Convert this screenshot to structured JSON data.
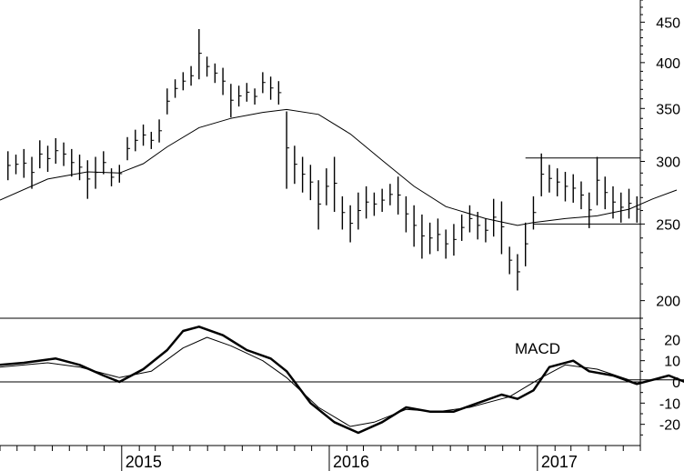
{
  "chart_data": [
    {
      "panel": "price",
      "type": "ohlc",
      "scale": "log",
      "ylim": [
        190,
        480
      ],
      "y_ticks": [
        200,
        250,
        300,
        350,
        400,
        450
      ],
      "x_ticks": [
        "2015",
        "2016",
        "2017"
      ],
      "xlim": [
        "2014-06-01",
        "2017-07-01"
      ],
      "grid": false,
      "bar_color": "#000000",
      "line_color": "#000000",
      "bars": [
        {
          "x": "2014-06-15",
          "h": 309,
          "l": 284
        },
        {
          "x": "2014-06-29",
          "h": 306,
          "l": 289
        },
        {
          "x": "2014-07-13",
          "h": 311,
          "l": 286
        },
        {
          "x": "2014-07-27",
          "h": 304,
          "l": 277
        },
        {
          "x": "2014-08-10",
          "h": 319,
          "l": 294
        },
        {
          "x": "2014-08-24",
          "h": 314,
          "l": 291
        },
        {
          "x": "2014-09-07",
          "h": 321,
          "l": 298
        },
        {
          "x": "2014-09-21",
          "h": 317,
          "l": 296
        },
        {
          "x": "2014-10-05",
          "h": 311,
          "l": 287
        },
        {
          "x": "2014-10-19",
          "h": 306,
          "l": 284
        },
        {
          "x": "2014-11-02",
          "h": 301,
          "l": 269
        },
        {
          "x": "2014-11-16",
          "h": 304,
          "l": 277
        },
        {
          "x": "2014-11-30",
          "h": 309,
          "l": 289
        },
        {
          "x": "2014-12-14",
          "h": 294,
          "l": 279
        },
        {
          "x": "2014-12-28",
          "h": 297,
          "l": 282
        },
        {
          "x": "2015-01-11",
          "h": 322,
          "l": 301
        },
        {
          "x": "2015-01-25",
          "h": 329,
          "l": 309
        },
        {
          "x": "2015-02-08",
          "h": 334,
          "l": 314
        },
        {
          "x": "2015-02-22",
          "h": 327,
          "l": 311
        },
        {
          "x": "2015-03-08",
          "h": 339,
          "l": 317
        },
        {
          "x": "2015-03-22",
          "h": 371,
          "l": 344
        },
        {
          "x": "2015-04-05",
          "h": 381,
          "l": 361
        },
        {
          "x": "2015-04-19",
          "h": 389,
          "l": 369
        },
        {
          "x": "2015-05-03",
          "h": 396,
          "l": 374
        },
        {
          "x": "2015-05-17",
          "h": 441,
          "l": 381
        },
        {
          "x": "2015-05-31",
          "h": 407,
          "l": 384
        },
        {
          "x": "2015-06-14",
          "h": 399,
          "l": 377
        },
        {
          "x": "2015-06-28",
          "h": 394,
          "l": 364
        },
        {
          "x": "2015-07-12",
          "h": 376,
          "l": 341
        },
        {
          "x": "2015-07-26",
          "h": 374,
          "l": 352
        },
        {
          "x": "2015-08-09",
          "h": 377,
          "l": 357
        },
        {
          "x": "2015-08-23",
          "h": 371,
          "l": 354
        },
        {
          "x": "2015-09-06",
          "h": 389,
          "l": 366
        },
        {
          "x": "2015-09-20",
          "h": 384,
          "l": 359
        },
        {
          "x": "2015-10-04",
          "h": 379,
          "l": 354
        },
        {
          "x": "2015-10-18",
          "h": 347,
          "l": 277
        },
        {
          "x": "2015-11-01",
          "h": 314,
          "l": 281
        },
        {
          "x": "2015-11-15",
          "h": 304,
          "l": 274
        },
        {
          "x": "2015-11-29",
          "h": 297,
          "l": 268
        },
        {
          "x": "2015-12-13",
          "h": 284,
          "l": 246
        },
        {
          "x": "2015-12-27",
          "h": 294,
          "l": 264
        },
        {
          "x": "2016-01-10",
          "h": 304,
          "l": 259
        },
        {
          "x": "2016-01-24",
          "h": 271,
          "l": 246
        },
        {
          "x": "2016-02-07",
          "h": 264,
          "l": 237
        },
        {
          "x": "2016-02-21",
          "h": 274,
          "l": 246
        },
        {
          "x": "2016-03-06",
          "h": 279,
          "l": 254
        },
        {
          "x": "2016-03-20",
          "h": 274,
          "l": 256
        },
        {
          "x": "2016-04-03",
          "h": 277,
          "l": 259
        },
        {
          "x": "2016-04-17",
          "h": 281,
          "l": 264
        },
        {
          "x": "2016-05-01",
          "h": 287,
          "l": 257
        },
        {
          "x": "2016-05-15",
          "h": 271,
          "l": 244
        },
        {
          "x": "2016-05-29",
          "h": 264,
          "l": 234
        },
        {
          "x": "2016-06-12",
          "h": 257,
          "l": 226
        },
        {
          "x": "2016-06-26",
          "h": 251,
          "l": 229
        },
        {
          "x": "2016-07-10",
          "h": 254,
          "l": 231
        },
        {
          "x": "2016-07-24",
          "h": 246,
          "l": 226
        },
        {
          "x": "2016-08-07",
          "h": 250,
          "l": 228
        },
        {
          "x": "2016-08-21",
          "h": 257,
          "l": 238
        },
        {
          "x": "2016-09-04",
          "h": 264,
          "l": 244
        },
        {
          "x": "2016-09-18",
          "h": 259,
          "l": 239
        },
        {
          "x": "2016-10-02",
          "h": 254,
          "l": 237
        },
        {
          "x": "2016-10-16",
          "h": 269,
          "l": 241
        },
        {
          "x": "2016-10-30",
          "h": 267,
          "l": 229
        },
        {
          "x": "2016-11-13",
          "h": 234,
          "l": 216
        },
        {
          "x": "2016-11-27",
          "h": 229,
          "l": 206
        },
        {
          "x": "2016-12-11",
          "h": 251,
          "l": 221
        },
        {
          "x": "2016-12-25",
          "h": 271,
          "l": 246
        },
        {
          "x": "2017-01-08",
          "h": 307,
          "l": 271
        },
        {
          "x": "2017-01-22",
          "h": 297,
          "l": 274
        },
        {
          "x": "2017-02-05",
          "h": 294,
          "l": 271
        },
        {
          "x": "2017-02-19",
          "h": 291,
          "l": 267
        },
        {
          "x": "2017-03-05",
          "h": 289,
          "l": 266
        },
        {
          "x": "2017-03-19",
          "h": 283,
          "l": 261
        },
        {
          "x": "2017-04-02",
          "h": 274,
          "l": 247
        },
        {
          "x": "2017-04-16",
          "h": 304,
          "l": 264
        },
        {
          "x": "2017-04-30",
          "h": 287,
          "l": 261
        },
        {
          "x": "2017-05-14",
          "h": 279,
          "l": 254
        },
        {
          "x": "2017-05-28",
          "h": 274,
          "l": 251
        },
        {
          "x": "2017-06-11",
          "h": 277,
          "l": 254
        },
        {
          "x": "2017-06-25",
          "h": 271,
          "l": 251
        }
      ],
      "moving_average": [
        {
          "x": "2014-06-01",
          "y": 268
        },
        {
          "x": "2014-08-24",
          "y": 285
        },
        {
          "x": "2014-11-02",
          "y": 291
        },
        {
          "x": "2014-12-28",
          "y": 290
        },
        {
          "x": "2015-02-08",
          "y": 298
        },
        {
          "x": "2015-03-22",
          "y": 313
        },
        {
          "x": "2015-05-17",
          "y": 331
        },
        {
          "x": "2015-07-12",
          "y": 340
        },
        {
          "x": "2015-09-06",
          "y": 346
        },
        {
          "x": "2015-10-18",
          "y": 349
        },
        {
          "x": "2015-12-13",
          "y": 344
        },
        {
          "x": "2016-02-07",
          "y": 325
        },
        {
          "x": "2016-04-03",
          "y": 301
        },
        {
          "x": "2016-05-29",
          "y": 279
        },
        {
          "x": "2016-07-24",
          "y": 263
        },
        {
          "x": "2016-10-02",
          "y": 254
        },
        {
          "x": "2016-11-27",
          "y": 249
        },
        {
          "x": "2016-12-25",
          "y": 251
        },
        {
          "x": "2017-02-19",
          "y": 254
        },
        {
          "x": "2017-04-16",
          "y": 256
        },
        {
          "x": "2017-06-11",
          "y": 261
        },
        {
          "x": "2017-07-23",
          "y": 269
        },
        {
          "x": "2017-09-03",
          "y": 276
        }
      ],
      "horizontal_lines": [
        {
          "y": 303,
          "from": "2016-12-11",
          "to": "2017-09-17"
        },
        {
          "y": 250,
          "from": "2016-12-25",
          "to": "2017-09-17"
        }
      ]
    },
    {
      "panel": "macd",
      "type": "line",
      "annotation": "MACD",
      "ylim": [
        -30,
        30
      ],
      "y_ticks": [
        20,
        10,
        0,
        -10,
        -20
      ],
      "zero_line": true,
      "series": [
        {
          "role": "macd",
          "line_width": 2.5,
          "points": [
            {
              "x": "2014-06-01",
              "y": 8
            },
            {
              "x": "2014-07-13",
              "y": 9
            },
            {
              "x": "2014-09-07",
              "y": 11
            },
            {
              "x": "2014-10-19",
              "y": 8
            },
            {
              "x": "2014-11-30",
              "y": 3
            },
            {
              "x": "2014-12-28",
              "y": 0
            },
            {
              "x": "2015-02-08",
              "y": 6
            },
            {
              "x": "2015-03-22",
              "y": 15
            },
            {
              "x": "2015-04-19",
              "y": 24
            },
            {
              "x": "2015-05-17",
              "y": 26
            },
            {
              "x": "2015-06-28",
              "y": 22
            },
            {
              "x": "2015-08-09",
              "y": 15
            },
            {
              "x": "2015-09-20",
              "y": 11
            },
            {
              "x": "2015-10-18",
              "y": 5
            },
            {
              "x": "2015-11-29",
              "y": -10
            },
            {
              "x": "2016-01-10",
              "y": -19
            },
            {
              "x": "2016-02-21",
              "y": -24
            },
            {
              "x": "2016-04-03",
              "y": -19
            },
            {
              "x": "2016-05-15",
              "y": -12
            },
            {
              "x": "2016-06-26",
              "y": -14
            },
            {
              "x": "2016-08-07",
              "y": -14
            },
            {
              "x": "2016-09-18",
              "y": -10
            },
            {
              "x": "2016-10-30",
              "y": -6
            },
            {
              "x": "2016-11-27",
              "y": -8
            },
            {
              "x": "2016-12-25",
              "y": -4
            },
            {
              "x": "2017-01-22",
              "y": 7
            },
            {
              "x": "2017-03-05",
              "y": 10
            },
            {
              "x": "2017-04-02",
              "y": 5
            },
            {
              "x": "2017-05-14",
              "y": 3
            },
            {
              "x": "2017-06-25",
              "y": -1
            },
            {
              "x": "2017-07-23",
              "y": 1
            },
            {
              "x": "2017-08-20",
              "y": 3
            },
            {
              "x": "2017-09-17",
              "y": 0
            }
          ]
        },
        {
          "role": "signal",
          "line_width": 1,
          "points": [
            {
              "x": "2014-06-01",
              "y": 7
            },
            {
              "x": "2014-08-24",
              "y": 9
            },
            {
              "x": "2014-10-19",
              "y": 7
            },
            {
              "x": "2014-12-28",
              "y": 2
            },
            {
              "x": "2015-02-22",
              "y": 5
            },
            {
              "x": "2015-04-19",
              "y": 16
            },
            {
              "x": "2015-05-31",
              "y": 21
            },
            {
              "x": "2015-07-12",
              "y": 17
            },
            {
              "x": "2015-09-06",
              "y": 10
            },
            {
              "x": "2015-10-18",
              "y": 2
            },
            {
              "x": "2015-12-13",
              "y": -12
            },
            {
              "x": "2016-02-07",
              "y": -21
            },
            {
              "x": "2016-03-20",
              "y": -19
            },
            {
              "x": "2016-05-15",
              "y": -13
            },
            {
              "x": "2016-07-10",
              "y": -14
            },
            {
              "x": "2016-09-04",
              "y": -12
            },
            {
              "x": "2016-11-13",
              "y": -7
            },
            {
              "x": "2017-01-08",
              "y": 2
            },
            {
              "x": "2017-02-19",
              "y": 8
            },
            {
              "x": "2017-04-16",
              "y": 6
            },
            {
              "x": "2017-06-11",
              "y": 1
            },
            {
              "x": "2017-08-06",
              "y": 1
            },
            {
              "x": "2017-09-17",
              "y": 1
            }
          ]
        }
      ]
    }
  ]
}
